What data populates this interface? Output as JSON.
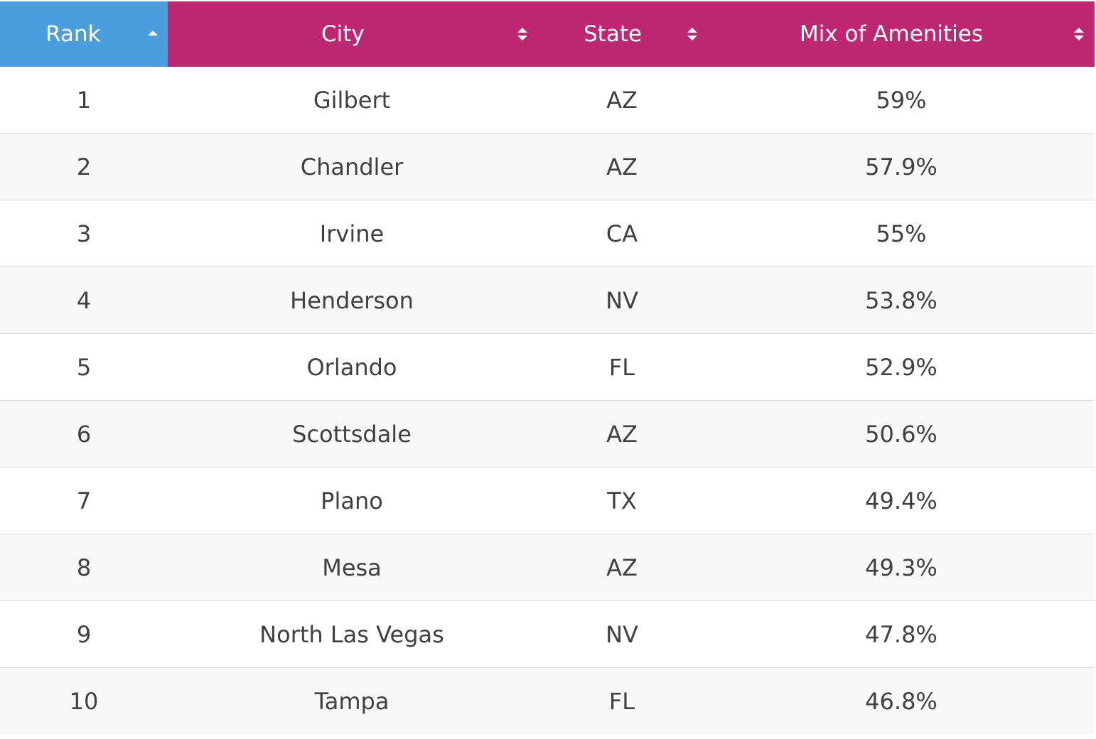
{
  "table": {
    "columns": [
      {
        "key": "rank",
        "label": "Rank",
        "sort_state": "ascending"
      },
      {
        "key": "city",
        "label": "City",
        "sort_state": "unsorted"
      },
      {
        "key": "state",
        "label": "State",
        "sort_state": "unsorted"
      },
      {
        "key": "amenities",
        "label": "Mix of Amenities",
        "sort_state": "unsorted"
      }
    ],
    "rows": [
      {
        "rank": "1",
        "city": "Gilbert",
        "state": "AZ",
        "amenities": "59%"
      },
      {
        "rank": "2",
        "city": "Chandler",
        "state": "AZ",
        "amenities": "57.9%"
      },
      {
        "rank": "3",
        "city": "Irvine",
        "state": "CA",
        "amenities": "55%"
      },
      {
        "rank": "4",
        "city": "Henderson",
        "state": "NV",
        "amenities": "53.8%"
      },
      {
        "rank": "5",
        "city": "Orlando",
        "state": "FL",
        "amenities": "52.9%"
      },
      {
        "rank": "6",
        "city": "Scottsdale",
        "state": "AZ",
        "amenities": "50.6%"
      },
      {
        "rank": "7",
        "city": "Plano",
        "state": "TX",
        "amenities": "49.4%"
      },
      {
        "rank": "8",
        "city": "Mesa",
        "state": "AZ",
        "amenities": "49.3%"
      },
      {
        "rank": "9",
        "city": "North Las Vegas",
        "state": "NV",
        "amenities": "47.8%"
      },
      {
        "rank": "10",
        "city": "Tampa",
        "state": "FL",
        "amenities": "46.8%"
      }
    ]
  },
  "colors": {
    "header_active": "#4a9edc",
    "header_default": "#be2771",
    "header_text": "#ffffff",
    "body_text": "#404040",
    "row_alt": "#f8f8f8",
    "row_border": "#dcdcdc"
  }
}
